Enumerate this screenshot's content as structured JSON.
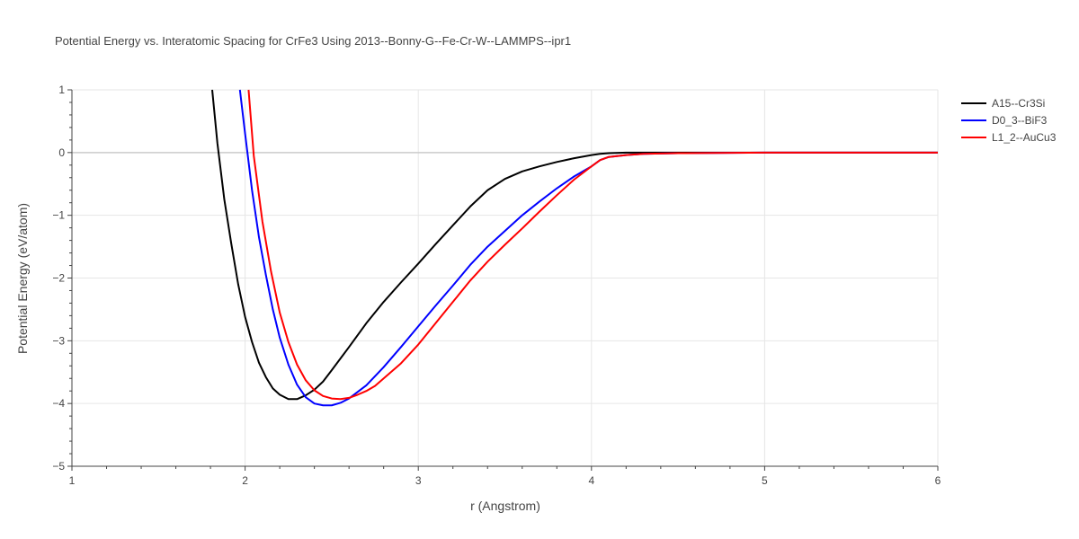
{
  "chart_data": {
    "type": "line",
    "title": "Potential Energy vs. Interatomic Spacing for CrFe3 Using 2013--Bonny-G--Fe-Cr-W--LAMMPS--ipr1",
    "xlabel": "r (Angstrom)",
    "ylabel": "Potential Energy (eV/atom)",
    "xlim": [
      1,
      6
    ],
    "ylim": [
      -5,
      1
    ],
    "xticks": [
      1,
      2,
      3,
      4,
      5,
      6
    ],
    "yticks": [
      1,
      0,
      -1,
      -2,
      -3,
      -4,
      -5
    ],
    "ytick_labels": [
      "1",
      "0",
      "−1",
      "−2",
      "−3",
      "−4",
      "−5"
    ],
    "grid": true,
    "legend_position": "top-right",
    "series": [
      {
        "name": "A15--Cr3Si",
        "color": "#000000",
        "x": [
          1.81,
          1.84,
          1.88,
          1.92,
          1.96,
          2.0,
          2.04,
          2.08,
          2.12,
          2.16,
          2.2,
          2.25,
          2.3,
          2.35,
          2.4,
          2.45,
          2.5,
          2.6,
          2.7,
          2.8,
          2.9,
          3.0,
          3.1,
          3.2,
          3.3,
          3.4,
          3.5,
          3.6,
          3.7,
          3.8,
          3.9,
          4.0,
          4.05,
          4.1,
          4.2,
          4.3,
          4.5,
          5.0,
          6.0
        ],
        "y": [
          1.0,
          0.15,
          -0.75,
          -1.45,
          -2.1,
          -2.62,
          -3.02,
          -3.35,
          -3.58,
          -3.76,
          -3.86,
          -3.93,
          -3.93,
          -3.87,
          -3.78,
          -3.65,
          -3.47,
          -3.1,
          -2.72,
          -2.38,
          -2.07,
          -1.77,
          -1.46,
          -1.16,
          -0.86,
          -0.6,
          -0.42,
          -0.3,
          -0.22,
          -0.15,
          -0.09,
          -0.04,
          -0.02,
          -0.01,
          0.0,
          0.0,
          0.0,
          0.0,
          0.0
        ]
      },
      {
        "name": "D0_3--BiF3",
        "color": "#0000ff",
        "x": [
          1.97,
          2.0,
          2.04,
          2.08,
          2.12,
          2.16,
          2.2,
          2.25,
          2.3,
          2.35,
          2.4,
          2.45,
          2.5,
          2.55,
          2.6,
          2.7,
          2.8,
          2.9,
          3.0,
          3.1,
          3.2,
          3.3,
          3.4,
          3.5,
          3.6,
          3.7,
          3.8,
          3.9,
          4.0,
          4.05,
          4.1,
          4.2,
          4.3,
          4.5,
          5.0,
          6.0
        ],
        "y": [
          1.0,
          0.3,
          -0.6,
          -1.35,
          -1.95,
          -2.5,
          -2.95,
          -3.38,
          -3.7,
          -3.9,
          -4.0,
          -4.03,
          -4.03,
          -3.99,
          -3.92,
          -3.71,
          -3.42,
          -3.1,
          -2.77,
          -2.44,
          -2.12,
          -1.79,
          -1.5,
          -1.25,
          -1.0,
          -0.78,
          -0.57,
          -0.38,
          -0.22,
          -0.12,
          -0.07,
          -0.04,
          -0.02,
          -0.01,
          0.0,
          0.0
        ]
      },
      {
        "name": "L1_2--AuCu3",
        "color": "#ff0000",
        "x": [
          2.02,
          2.05,
          2.1,
          2.15,
          2.2,
          2.25,
          2.3,
          2.35,
          2.4,
          2.45,
          2.5,
          2.55,
          2.6,
          2.65,
          2.7,
          2.75,
          2.8,
          2.9,
          3.0,
          3.1,
          3.2,
          3.3,
          3.4,
          3.5,
          3.6,
          3.7,
          3.8,
          3.9,
          4.0,
          4.05,
          4.1,
          4.2,
          4.3,
          4.5,
          5.0,
          6.0
        ],
        "y": [
          1.0,
          -0.05,
          -1.1,
          -1.9,
          -2.55,
          -3.02,
          -3.38,
          -3.63,
          -3.79,
          -3.88,
          -3.92,
          -3.93,
          -3.91,
          -3.86,
          -3.8,
          -3.72,
          -3.6,
          -3.36,
          -3.06,
          -2.72,
          -2.38,
          -2.04,
          -1.74,
          -1.47,
          -1.21,
          -0.94,
          -0.68,
          -0.43,
          -0.22,
          -0.12,
          -0.07,
          -0.04,
          -0.02,
          -0.01,
          0.0,
          0.0
        ]
      }
    ]
  }
}
